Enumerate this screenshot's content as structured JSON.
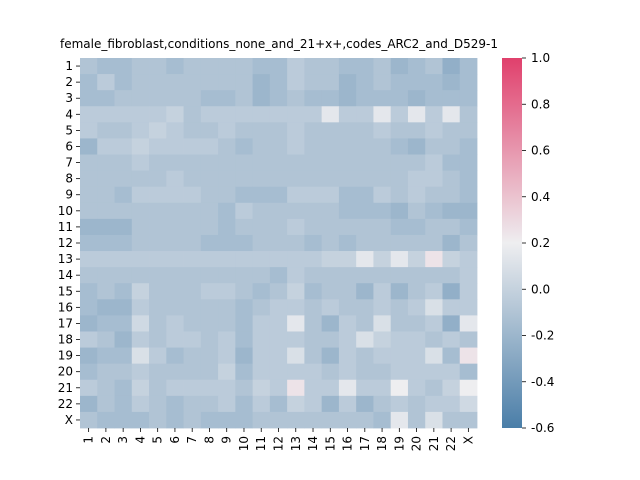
{
  "chart_data": {
    "type": "heatmap",
    "title": "female_fibroblast,conditions_none_and_21+x+,codes_ARC2_and_D529-1",
    "xlabel": "",
    "ylabel": "",
    "row_labels": [
      "1",
      "2",
      "3",
      "4",
      "5",
      "6",
      "7",
      "8",
      "9",
      "10",
      "11",
      "12",
      "13",
      "14",
      "15",
      "16",
      "17",
      "18",
      "19",
      "20",
      "21",
      "22",
      "X"
    ],
    "col_labels": [
      "1",
      "2",
      "3",
      "4",
      "5",
      "6",
      "7",
      "8",
      "9",
      "10",
      "11",
      "12",
      "13",
      "14",
      "15",
      "16",
      "17",
      "18",
      "19",
      "20",
      "21",
      "22",
      "X"
    ],
    "vmin": -0.6,
    "vmax": 1.0,
    "colorbar_ticks": [
      "-0.6",
      "-0.4",
      "-0.2",
      "0.0",
      "0.2",
      "0.4",
      "0.6",
      "0.8",
      "1.0"
    ],
    "colormap": {
      "low": "#4a7ea8",
      "mid": "#eeeef0",
      "high": "#e0406c",
      "center": 0.2
    },
    "values": [
      [
        -0.1,
        -0.15,
        -0.15,
        -0.1,
        -0.1,
        -0.15,
        -0.1,
        -0.1,
        -0.1,
        -0.1,
        -0.15,
        -0.15,
        -0.05,
        -0.1,
        -0.1,
        -0.15,
        -0.15,
        -0.1,
        -0.2,
        -0.15,
        -0.1,
        -0.25,
        -0.15
      ],
      [
        -0.15,
        -0.05,
        -0.15,
        -0.1,
        -0.1,
        -0.1,
        -0.1,
        -0.1,
        -0.1,
        -0.1,
        -0.2,
        -0.15,
        -0.05,
        -0.1,
        -0.1,
        -0.2,
        -0.15,
        -0.1,
        -0.15,
        -0.15,
        -0.15,
        -0.2,
        -0.15
      ],
      [
        -0.15,
        -0.15,
        -0.1,
        -0.1,
        -0.1,
        -0.1,
        -0.1,
        -0.15,
        -0.15,
        -0.1,
        -0.2,
        -0.15,
        -0.1,
        -0.15,
        -0.15,
        -0.2,
        -0.15,
        -0.15,
        -0.15,
        -0.2,
        -0.15,
        -0.15,
        -0.15
      ],
      [
        -0.05,
        -0.05,
        -0.05,
        -0.05,
        -0.05,
        0.0,
        -0.1,
        -0.05,
        -0.05,
        -0.05,
        -0.05,
        -0.05,
        -0.05,
        -0.05,
        0.15,
        -0.05,
        -0.05,
        0.15,
        -0.05,
        0.15,
        -0.05,
        0.15,
        -0.1
      ],
      [
        -0.05,
        -0.1,
        -0.1,
        -0.05,
        0.0,
        -0.05,
        -0.1,
        -0.1,
        -0.05,
        -0.1,
        -0.1,
        -0.1,
        -0.05,
        -0.1,
        -0.1,
        -0.1,
        -0.1,
        -0.05,
        -0.1,
        -0.1,
        -0.05,
        -0.1,
        -0.1
      ],
      [
        -0.2,
        -0.05,
        -0.05,
        0.0,
        -0.05,
        -0.05,
        -0.05,
        -0.05,
        -0.1,
        -0.15,
        -0.1,
        -0.1,
        -0.05,
        -0.1,
        -0.1,
        -0.1,
        -0.1,
        -0.1,
        -0.15,
        -0.2,
        -0.1,
        -0.1,
        -0.15
      ],
      [
        -0.1,
        -0.1,
        -0.1,
        -0.05,
        -0.1,
        -0.1,
        -0.1,
        -0.1,
        -0.1,
        -0.1,
        -0.1,
        -0.1,
        -0.1,
        -0.1,
        -0.1,
        -0.1,
        -0.1,
        -0.1,
        -0.1,
        -0.1,
        -0.05,
        -0.15,
        -0.15
      ],
      [
        -0.1,
        -0.1,
        -0.1,
        -0.1,
        -0.1,
        -0.05,
        -0.1,
        -0.1,
        -0.1,
        -0.1,
        -0.1,
        -0.1,
        -0.1,
        -0.1,
        -0.1,
        -0.1,
        -0.1,
        -0.1,
        -0.1,
        -0.05,
        -0.05,
        -0.1,
        -0.15
      ],
      [
        -0.1,
        -0.1,
        -0.15,
        -0.05,
        -0.05,
        -0.05,
        -0.05,
        -0.1,
        -0.1,
        -0.15,
        -0.15,
        -0.15,
        -0.05,
        -0.05,
        -0.05,
        -0.15,
        -0.15,
        -0.05,
        -0.1,
        -0.05,
        -0.1,
        -0.1,
        -0.15
      ],
      [
        -0.1,
        -0.1,
        -0.1,
        -0.1,
        -0.1,
        -0.1,
        -0.1,
        -0.1,
        -0.15,
        -0.05,
        -0.1,
        -0.1,
        -0.1,
        -0.1,
        -0.1,
        -0.15,
        -0.15,
        -0.15,
        -0.2,
        -0.1,
        -0.15,
        -0.2,
        -0.2
      ],
      [
        -0.2,
        -0.2,
        -0.2,
        -0.1,
        -0.1,
        -0.1,
        -0.1,
        -0.1,
        -0.15,
        -0.1,
        -0.1,
        -0.1,
        -0.05,
        -0.1,
        -0.1,
        -0.1,
        -0.1,
        -0.1,
        -0.15,
        -0.15,
        -0.1,
        -0.1,
        -0.15
      ],
      [
        -0.15,
        -0.15,
        -0.15,
        -0.1,
        -0.1,
        -0.1,
        -0.1,
        -0.15,
        -0.15,
        -0.15,
        -0.1,
        -0.1,
        -0.1,
        -0.15,
        -0.1,
        -0.15,
        -0.1,
        -0.1,
        -0.1,
        -0.1,
        -0.1,
        -0.2,
        -0.1
      ],
      [
        -0.05,
        -0.05,
        -0.05,
        -0.05,
        -0.05,
        -0.05,
        -0.05,
        -0.05,
        -0.05,
        -0.05,
        -0.05,
        -0.05,
        -0.05,
        -0.05,
        0.0,
        0.0,
        0.15,
        0.0,
        0.15,
        0.0,
        0.25,
        0.0,
        -0.05
      ],
      [
        -0.1,
        -0.1,
        -0.1,
        -0.1,
        -0.1,
        -0.1,
        -0.1,
        -0.1,
        -0.1,
        -0.1,
        -0.1,
        -0.15,
        -0.05,
        -0.1,
        -0.1,
        -0.1,
        -0.1,
        -0.1,
        -0.1,
        -0.1,
        -0.1,
        -0.1,
        -0.05
      ],
      [
        -0.15,
        -0.1,
        -0.15,
        0.0,
        -0.1,
        -0.1,
        -0.1,
        -0.05,
        -0.05,
        -0.1,
        -0.15,
        -0.1,
        0.0,
        -0.15,
        -0.1,
        -0.1,
        -0.2,
        -0.05,
        -0.2,
        -0.1,
        -0.05,
        -0.25,
        -0.05
      ],
      [
        -0.15,
        -0.2,
        -0.2,
        -0.05,
        -0.1,
        -0.1,
        -0.1,
        -0.1,
        -0.1,
        -0.15,
        -0.1,
        -0.05,
        -0.05,
        -0.1,
        -0.05,
        -0.1,
        -0.1,
        -0.05,
        -0.1,
        -0.05,
        0.1,
        -0.05,
        -0.05
      ],
      [
        -0.2,
        -0.15,
        -0.15,
        0.05,
        -0.1,
        -0.05,
        -0.1,
        -0.1,
        -0.1,
        -0.15,
        -0.05,
        -0.05,
        0.15,
        -0.1,
        -0.2,
        -0.05,
        -0.1,
        0.1,
        -0.1,
        -0.1,
        -0.05,
        -0.25,
        0.15
      ],
      [
        -0.05,
        -0.1,
        -0.2,
        -0.05,
        -0.1,
        -0.05,
        -0.05,
        -0.1,
        -0.05,
        -0.15,
        -0.05,
        -0.05,
        -0.05,
        -0.1,
        -0.1,
        -0.05,
        0.1,
        0.0,
        -0.05,
        -0.05,
        -0.1,
        -0.05,
        -0.1
      ],
      [
        -0.2,
        -0.15,
        -0.15,
        0.1,
        -0.05,
        -0.15,
        -0.1,
        -0.1,
        -0.05,
        -0.2,
        -0.05,
        -0.05,
        0.1,
        -0.1,
        -0.2,
        -0.05,
        -0.1,
        -0.05,
        -0.05,
        -0.05,
        0.1,
        -0.15,
        0.25
      ],
      [
        -0.15,
        -0.1,
        -0.1,
        -0.05,
        -0.1,
        -0.1,
        -0.1,
        -0.1,
        0.0,
        -0.15,
        -0.05,
        -0.05,
        -0.05,
        -0.05,
        -0.1,
        -0.05,
        -0.1,
        -0.1,
        -0.05,
        -0.05,
        -0.05,
        -0.05,
        -0.15
      ],
      [
        -0.05,
        -0.1,
        -0.15,
        0.0,
        -0.1,
        -0.05,
        -0.05,
        -0.05,
        -0.05,
        -0.1,
        0.0,
        -0.05,
        0.25,
        -0.05,
        -0.05,
        0.15,
        -0.05,
        -0.05,
        0.2,
        -0.05,
        -0.1,
        0.0,
        0.2
      ],
      [
        -0.2,
        -0.1,
        -0.15,
        -0.05,
        -0.1,
        -0.15,
        -0.1,
        -0.1,
        -0.05,
        -0.15,
        -0.05,
        -0.15,
        0.0,
        -0.05,
        -0.2,
        -0.05,
        -0.2,
        -0.1,
        -0.05,
        -0.1,
        -0.05,
        -0.05,
        0.05
      ],
      [
        -0.1,
        -0.15,
        -0.15,
        -0.15,
        -0.1,
        -0.15,
        -0.1,
        -0.15,
        -0.15,
        -0.15,
        -0.1,
        -0.1,
        -0.1,
        -0.1,
        -0.1,
        -0.1,
        -0.1,
        -0.15,
        0.15,
        -0.1,
        0.1,
        -0.1,
        -0.1
      ]
    ]
  }
}
